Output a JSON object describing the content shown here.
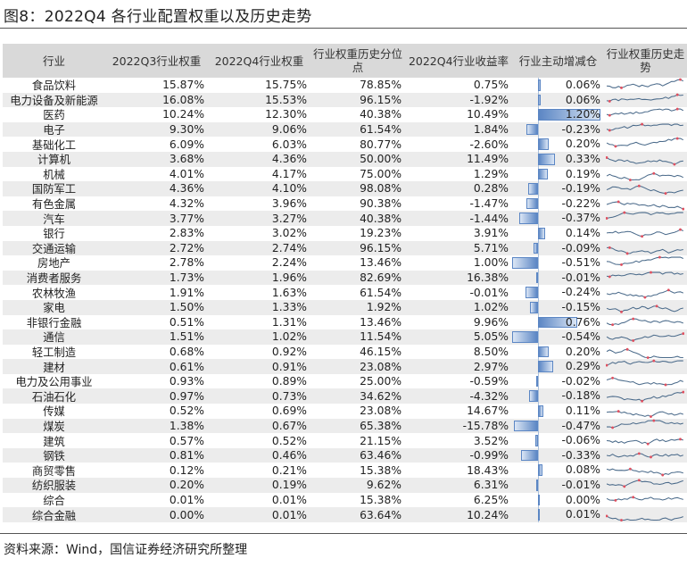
{
  "title": "图8：2022Q4 各行业配置权重以及历史走势",
  "source": "资料来源：Wind，国信证券经济研究所整理",
  "colors": {
    "header_bg": "#d9d9d9",
    "alt_row_bg": "#ececec",
    "bar": "#5b86c4",
    "sparkline": "#4a6a8a",
    "marker": "#e05060"
  },
  "table": {
    "headers": [
      "行业",
      "2022Q3行业权重",
      "2022Q4行业权重",
      "行业权重历史分位点",
      "2022Q4行业收益率",
      "行业主动增减仓",
      "行业权重历史走势"
    ],
    "rows": [
      {
        "industry": "食品饮料",
        "q3": "15.87%",
        "q4": "15.75%",
        "pct": "78.85%",
        "ret": "0.75%",
        "chg": "0.06%",
        "chg_v": 0.06
      },
      {
        "industry": "电力设备及新能源",
        "q3": "16.08%",
        "q4": "15.53%",
        "pct": "96.15%",
        "ret": "-1.92%",
        "chg": "0.06%",
        "chg_v": 0.06
      },
      {
        "industry": "医药",
        "q3": "10.24%",
        "q4": "12.30%",
        "pct": "40.38%",
        "ret": "10.49%",
        "chg": "1.20%",
        "chg_v": 1.2
      },
      {
        "industry": "电子",
        "q3": "9.30%",
        "q4": "9.06%",
        "pct": "61.54%",
        "ret": "1.84%",
        "chg": "-0.23%",
        "chg_v": -0.23
      },
      {
        "industry": "基础化工",
        "q3": "6.09%",
        "q4": "6.03%",
        "pct": "80.77%",
        "ret": "-2.60%",
        "chg": "0.20%",
        "chg_v": 0.2
      },
      {
        "industry": "计算机",
        "q3": "3.68%",
        "q4": "4.36%",
        "pct": "50.00%",
        "ret": "11.49%",
        "chg": "0.33%",
        "chg_v": 0.33
      },
      {
        "industry": "机械",
        "q3": "4.01%",
        "q4": "4.17%",
        "pct": "75.00%",
        "ret": "1.29%",
        "chg": "0.19%",
        "chg_v": 0.19
      },
      {
        "industry": "国防军工",
        "q3": "4.36%",
        "q4": "4.10%",
        "pct": "98.08%",
        "ret": "0.28%",
        "chg": "-0.19%",
        "chg_v": -0.19
      },
      {
        "industry": "有色金属",
        "q3": "4.32%",
        "q4": "3.96%",
        "pct": "90.38%",
        "ret": "-1.47%",
        "chg": "-0.22%",
        "chg_v": -0.22
      },
      {
        "industry": "汽车",
        "q3": "3.77%",
        "q4": "3.27%",
        "pct": "40.38%",
        "ret": "-1.44%",
        "chg": "-0.37%",
        "chg_v": -0.37
      },
      {
        "industry": "银行",
        "q3": "2.83%",
        "q4": "3.02%",
        "pct": "19.23%",
        "ret": "3.91%",
        "chg": "0.14%",
        "chg_v": 0.14
      },
      {
        "industry": "交通运输",
        "q3": "2.72%",
        "q4": "2.74%",
        "pct": "96.15%",
        "ret": "5.71%",
        "chg": "-0.09%",
        "chg_v": -0.09
      },
      {
        "industry": "房地产",
        "q3": "2.78%",
        "q4": "2.24%",
        "pct": "13.46%",
        "ret": "1.00%",
        "chg": "-0.51%",
        "chg_v": -0.51
      },
      {
        "industry": "消费者服务",
        "q3": "1.73%",
        "q4": "1.96%",
        "pct": "82.69%",
        "ret": "16.38%",
        "chg": "-0.01%",
        "chg_v": -0.01
      },
      {
        "industry": "农林牧渔",
        "q3": "1.91%",
        "q4": "1.63%",
        "pct": "61.54%",
        "ret": "-0.01%",
        "chg": "-0.24%",
        "chg_v": -0.24
      },
      {
        "industry": "家电",
        "q3": "1.50%",
        "q4": "1.33%",
        "pct": "1.92%",
        "ret": "1.02%",
        "chg": "-0.15%",
        "chg_v": -0.15
      },
      {
        "industry": "非银行金融",
        "q3": "0.51%",
        "q4": "1.31%",
        "pct": "13.46%",
        "ret": "9.96%",
        "chg": "0.76%",
        "chg_v": 0.76
      },
      {
        "industry": "通信",
        "q3": "1.51%",
        "q4": "1.02%",
        "pct": "11.54%",
        "ret": "5.05%",
        "chg": "-0.54%",
        "chg_v": -0.54
      },
      {
        "industry": "轻工制造",
        "q3": "0.68%",
        "q4": "0.92%",
        "pct": "46.15%",
        "ret": "8.50%",
        "chg": "0.20%",
        "chg_v": 0.2
      },
      {
        "industry": "建材",
        "q3": "0.61%",
        "q4": "0.91%",
        "pct": "23.08%",
        "ret": "2.97%",
        "chg": "0.29%",
        "chg_v": 0.29
      },
      {
        "industry": "电力及公用事业",
        "q3": "0.93%",
        "q4": "0.89%",
        "pct": "25.00%",
        "ret": "-0.59%",
        "chg": "-0.02%",
        "chg_v": -0.02
      },
      {
        "industry": "石油石化",
        "q3": "0.97%",
        "q4": "0.73%",
        "pct": "34.62%",
        "ret": "-4.32%",
        "chg": "-0.18%",
        "chg_v": -0.18
      },
      {
        "industry": "传媒",
        "q3": "0.52%",
        "q4": "0.69%",
        "pct": "23.08%",
        "ret": "14.67%",
        "chg": "0.11%",
        "chg_v": 0.11
      },
      {
        "industry": "煤炭",
        "q3": "1.38%",
        "q4": "0.67%",
        "pct": "65.38%",
        "ret": "-15.78%",
        "chg": "-0.47%",
        "chg_v": -0.47
      },
      {
        "industry": "建筑",
        "q3": "0.57%",
        "q4": "0.52%",
        "pct": "21.15%",
        "ret": "3.52%",
        "chg": "-0.06%",
        "chg_v": -0.06
      },
      {
        "industry": "钢铁",
        "q3": "0.81%",
        "q4": "0.46%",
        "pct": "63.46%",
        "ret": "-0.99%",
        "chg": "-0.33%",
        "chg_v": -0.33
      },
      {
        "industry": "商贸零售",
        "q3": "0.12%",
        "q4": "0.21%",
        "pct": "15.38%",
        "ret": "18.43%",
        "chg": "0.08%",
        "chg_v": 0.08
      },
      {
        "industry": "纺织服装",
        "q3": "0.20%",
        "q4": "0.19%",
        "pct": "9.62%",
        "ret": "6.31%",
        "chg": "-0.01%",
        "chg_v": -0.01
      },
      {
        "industry": "综合",
        "q3": "0.01%",
        "q4": "0.01%",
        "pct": "15.38%",
        "ret": "6.25%",
        "chg": "0.00%",
        "chg_v": 0.0
      },
      {
        "industry": "综合金融",
        "q3": "0.00%",
        "q4": "0.01%",
        "pct": "63.64%",
        "ret": "10.24%",
        "chg": "0.01%",
        "chg_v": 0.01
      }
    ]
  }
}
